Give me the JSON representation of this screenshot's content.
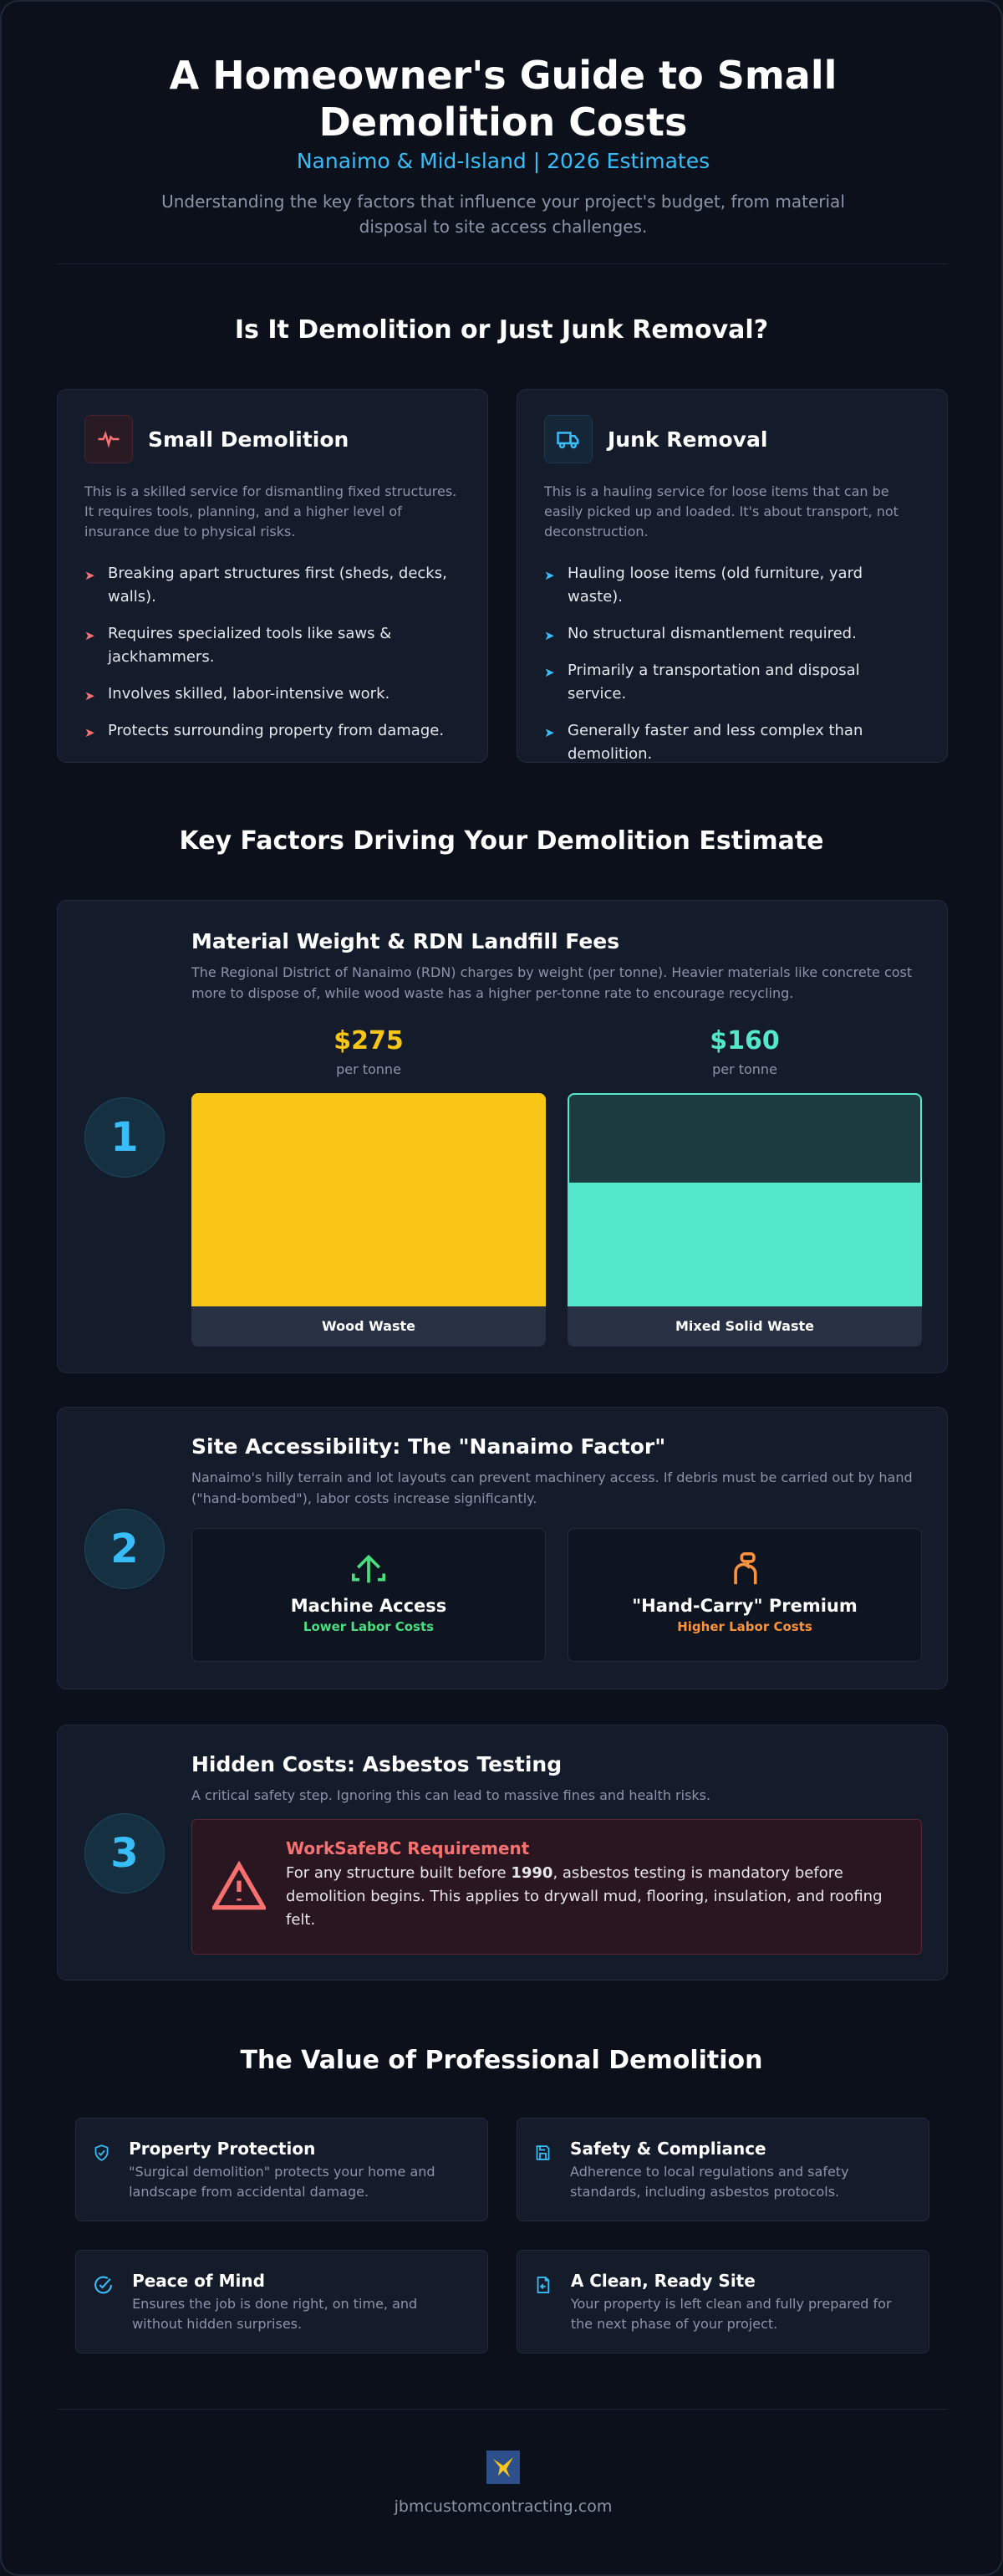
{
  "header": {
    "title": "A Homeowner's Guide to Small Demolition Costs",
    "subtitle": "Nanaimo & Mid-Island | 2026 Estimates",
    "description": "Understanding the key factors that influence your project's budget, from material disposal to site access challenges."
  },
  "comparison": {
    "title": "Is It Demolition or Just Junk Removal?",
    "cards": [
      {
        "title": "Small Demolition",
        "description": "This is a skilled service for dismantling fixed structures. It requires tools, planning, and a higher level of insurance due to physical risks.",
        "items": [
          "Breaking apart structures first (sheds, decks, walls).",
          "Requires specialized tools like saws & jackhammers.",
          "Involves skilled, labor-intensive work.",
          "Protects surrounding property from damage."
        ]
      },
      {
        "title": "Junk Removal",
        "description": "This is a hauling service for loose items that can be easily picked up and loaded. It's about transport, not deconstruction.",
        "items": [
          "Hauling loose items (old furniture, yard waste).",
          "No structural dismantlement required.",
          "Primarily a transportation and disposal service.",
          "Generally faster and less complex than demolition."
        ]
      }
    ]
  },
  "factors": {
    "title": "Key Factors Driving Your Demolition Estimate",
    "items": [
      {
        "number": 1,
        "title": "Material Weight & RDN Landfill Fees",
        "description": "The Regional District of Nanaimo (RDN) charges by weight (per tonne). Heavier materials like concrete cost more to dispose of, while wood waste has a higher per-tonne rate to encourage recycling."
      },
      {
        "number": 2,
        "title": "Site Accessibility: The \"Nanaimo Factor\"",
        "description": "Nanaimo's hilly terrain and lot layouts can prevent machinery access. If debris must be carried out by hand (\"hand-bombed\"), labor costs increase significantly."
      },
      {
        "number": 3,
        "title": "Hidden Costs: Asbestos Testing",
        "description": "A critical safety step. Ignoring this can lead to massive fines and health risks."
      }
    ]
  },
  "chart_data": {
    "type": "bar",
    "categories": [
      "Wood Waste",
      "Mixed Solid Waste"
    ],
    "values": [
      275,
      160
    ],
    "value_labels": [
      "$275",
      "$160"
    ],
    "unit_label": "per tonne",
    "colors": [
      "#f9c517",
      "#52e8c9"
    ],
    "ylim": [
      0,
      275
    ]
  },
  "access": [
    {
      "title": "Machine Access",
      "note": "Lower Labor Costs"
    },
    {
      "title": "\"Hand-Carry\" Premium",
      "note": "Higher Labor Costs"
    }
  ],
  "warning": {
    "title": "WorkSafeBC Requirement",
    "text_before": "For any structure built before ",
    "bold": "1990",
    "text_after": ", asbestos testing is mandatory before demolition begins. This applies to drywall mud, flooring, insulation, and roofing felt."
  },
  "value": {
    "title": "The Value of Professional Demolition",
    "items": [
      {
        "title": "Property Protection",
        "description": "\"Surgical demolition\" protects your home and landscape from accidental damage."
      },
      {
        "title": "Safety & Compliance",
        "description": "Adherence to local regulations and safety standards, including asbestos protocols."
      },
      {
        "title": "Peace of Mind",
        "description": "Ensures the job is done right, on time, and without hidden surprises."
      },
      {
        "title": "A Clean, Ready Site",
        "description": "Your property is left clean and fully prepared for the next phase of your project."
      }
    ]
  },
  "footer": {
    "website": "jbmcustomcontracting.com"
  }
}
